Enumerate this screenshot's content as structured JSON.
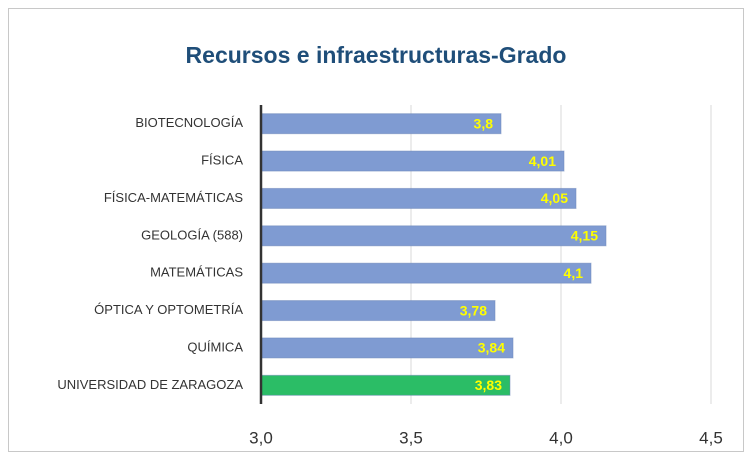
{
  "chart_data": {
    "type": "barh",
    "title": "Recursos e infraestructuras-Grado",
    "categories": [
      "BIOTECNOLOGÍA",
      "FÍSICA",
      "FÍSICA-MATEMÁTICAS",
      "GEOLOGÍA (588)",
      "MATEMÁTICAS",
      "ÓPTICA Y OPTOMETRÍA",
      "QUÍMICA",
      "UNIVERSIDAD DE ZARAGOZA"
    ],
    "values": [
      3.8,
      4.01,
      4.05,
      4.15,
      4.1,
      3.78,
      3.84,
      3.83
    ],
    "value_labels": [
      "3,8",
      "4,01",
      "4,05",
      "4,15",
      "4,1",
      "3,78",
      "3,84",
      "3,83"
    ],
    "colors": [
      "#7f9bd2",
      "#7f9bd2",
      "#7f9bd2",
      "#7f9bd2",
      "#7f9bd2",
      "#7f9bd2",
      "#7f9bd2",
      "#2bbd66"
    ],
    "xlim": [
      3.0,
      4.5
    ],
    "xticks": [
      {
        "value": 3.0,
        "label": "3,0"
      },
      {
        "value": 3.5,
        "label": "3,5"
      },
      {
        "value": 4.0,
        "label": "4,0"
      },
      {
        "value": 4.5,
        "label": "4,5"
      }
    ],
    "grid": true
  }
}
